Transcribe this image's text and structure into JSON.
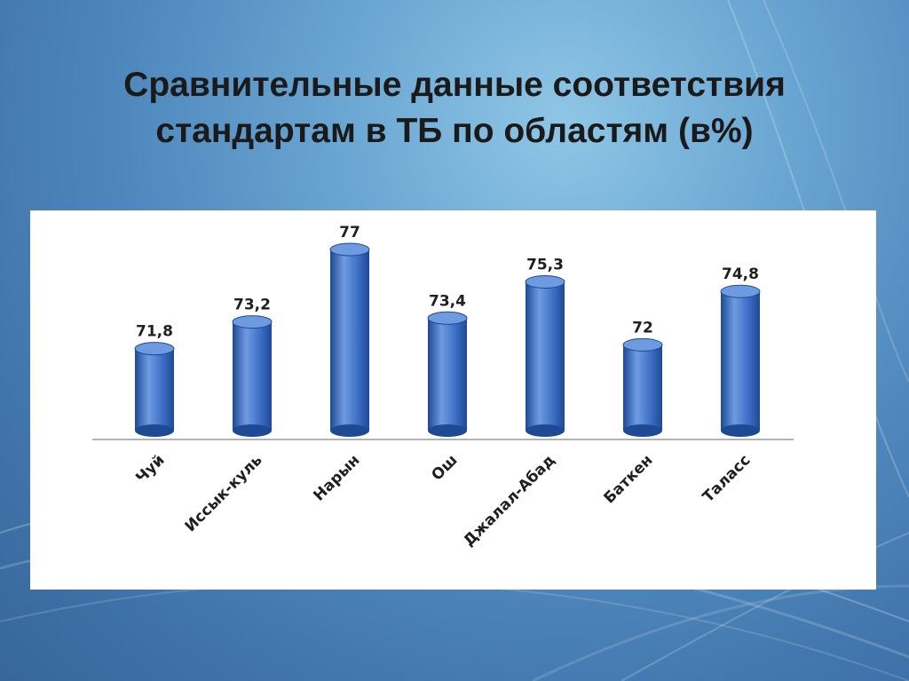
{
  "slide": {
    "title_line1": "Сравнительные данные соответствия",
    "title_line2": "стандартам в ТБ по областям (в%)"
  },
  "colors": {
    "bar_light": "#6e9be0",
    "bar_mid": "#3f6fc6",
    "bar_dark": "#1e4a94",
    "background_dark": "#37679a",
    "background_light": "#8fc6e6"
  },
  "chart_data": {
    "type": "bar",
    "style": "3d-cylinder",
    "categories": [
      "Чуй",
      "Иссык-куль",
      "Нарын",
      "Ош",
      "Джалал-Абад",
      "Баткен",
      "Таласс"
    ],
    "values": [
      71.8,
      73.2,
      77,
      73.4,
      75.3,
      72,
      74.8
    ],
    "value_labels": [
      "71,8",
      "73,2",
      "77",
      "73,4",
      "75,3",
      "72",
      "74,8"
    ],
    "title": "",
    "xlabel": "",
    "ylabel": "",
    "ylim": [
      67.5,
      77
    ],
    "grid": false,
    "legend": "none"
  }
}
